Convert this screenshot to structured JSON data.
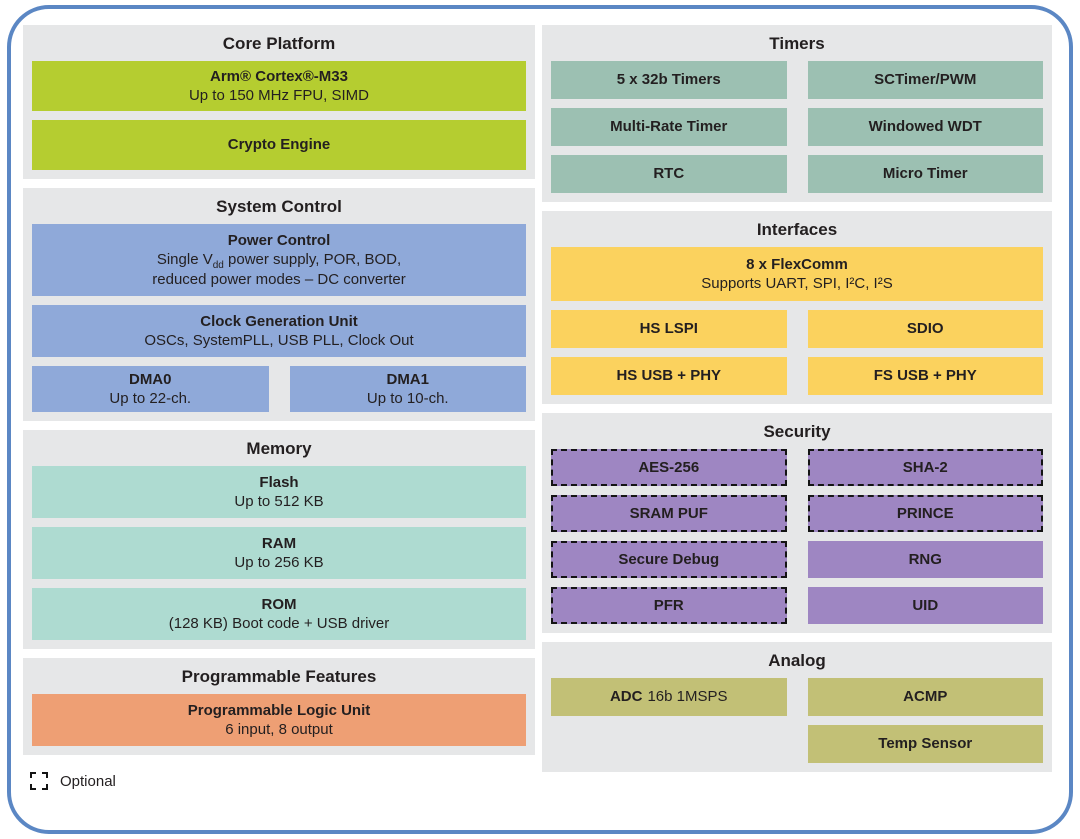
{
  "colors": {
    "frame_border": "#5b87c4",
    "panel_bg": "#e6e7e8",
    "core_green": "#b5cd30",
    "system_blue": "#8fa9d9",
    "memory_mint": "#aedbd1",
    "programmable_orange": "#ee9f74",
    "timers_sage": "#9cc0b2",
    "interfaces_yellow": "#fbd25e",
    "security_purple": "#9e86c2",
    "analog_olive": "#c2c076",
    "text": "#231f20"
  },
  "core_platform": {
    "title": "Core Platform",
    "cortex": {
      "title": "Arm® Cortex®-M33",
      "subtitle": "Up to 150 MHz FPU, SIMD"
    },
    "crypto": {
      "title": "Crypto Engine"
    }
  },
  "system_control": {
    "title": "System Control",
    "power": {
      "title": "Power Control",
      "line1_pre": "Single V",
      "line1_sub": "dd",
      "line1_post": " power supply, POR, BOD,",
      "line2": "reduced power modes – DC converter"
    },
    "clock": {
      "title": "Clock Generation Unit",
      "subtitle": "OSCs, SystemPLL, USB PLL, Clock Out"
    },
    "dma0": {
      "title": "DMA0",
      "subtitle": "Up to 22-ch."
    },
    "dma1": {
      "title": "DMA1",
      "subtitle": "Up to 10-ch."
    }
  },
  "memory": {
    "title": "Memory",
    "flash": {
      "title": "Flash",
      "subtitle": "Up to 512 KB"
    },
    "ram": {
      "title": "RAM",
      "subtitle": "Up to 256 KB"
    },
    "rom": {
      "title": "ROM",
      "subtitle": "(128 KB) Boot code + USB driver"
    }
  },
  "programmable_features": {
    "title": "Programmable Features",
    "plu": {
      "title": "Programmable Logic Unit",
      "subtitle": "6 input, 8 output"
    }
  },
  "timers": {
    "title": "Timers",
    "items": [
      {
        "label": "5 x 32b Timers"
      },
      {
        "label": "SCTimer/PWM"
      },
      {
        "label": "Multi-Rate Timer"
      },
      {
        "label": "Windowed WDT"
      },
      {
        "label": "RTC"
      },
      {
        "label": "Micro Timer"
      }
    ]
  },
  "interfaces": {
    "title": "Interfaces",
    "flexcomm": {
      "title": "8 x FlexComm",
      "subtitle": "Supports UART, SPI, I²C, I²S"
    },
    "items": [
      {
        "label": "HS LSPI"
      },
      {
        "label": "SDIO"
      },
      {
        "label": "HS USB + PHY"
      },
      {
        "label": "FS USB + PHY"
      }
    ]
  },
  "security": {
    "title": "Security",
    "items": [
      {
        "label": "AES-256",
        "optional": true
      },
      {
        "label": "SHA-2",
        "optional": true
      },
      {
        "label": "SRAM PUF",
        "optional": true
      },
      {
        "label": "PRINCE",
        "optional": true
      },
      {
        "label": "Secure Debug",
        "optional": true
      },
      {
        "label": "RNG",
        "optional": false
      },
      {
        "label": "PFR",
        "optional": true
      },
      {
        "label": "UID",
        "optional": false
      }
    ]
  },
  "analog": {
    "title": "Analog",
    "adc": {
      "bold": "ADC",
      "rest": "16b 1MSPS"
    },
    "acmp": {
      "label": "ACMP"
    },
    "temp_sensor": {
      "label": "Temp Sensor"
    }
  },
  "legend": {
    "label": "Optional"
  }
}
